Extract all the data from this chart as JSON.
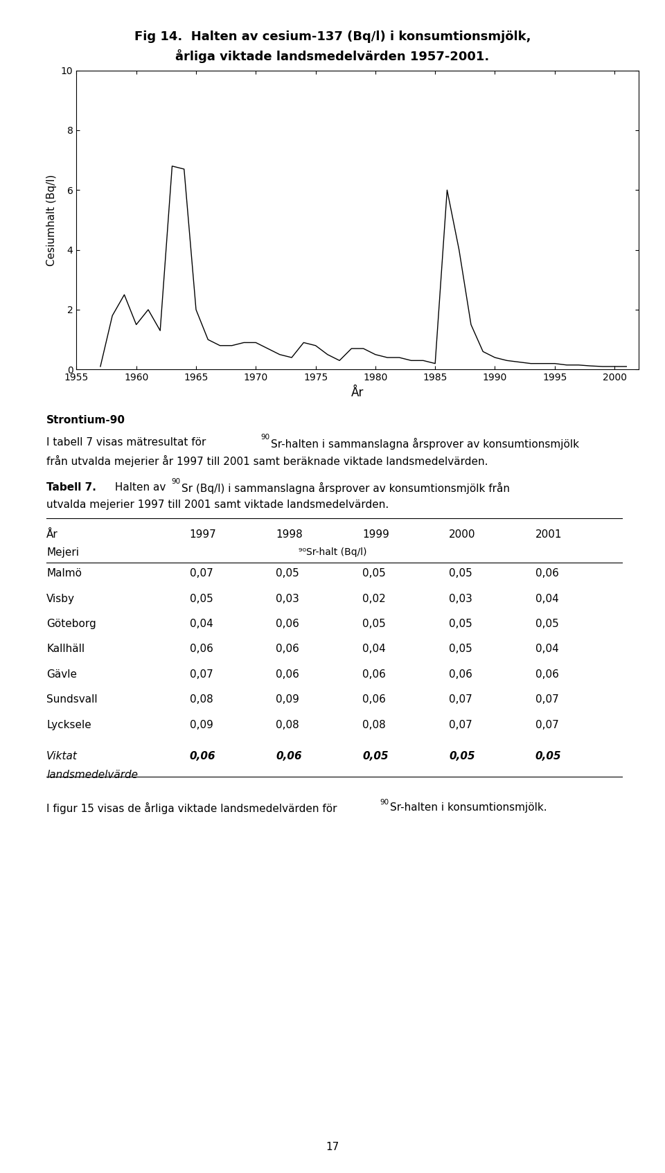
{
  "fig_title_line1": "Fig 14.  Halten av cesium-137 (Bq/l) i konsumtionsmjölk,",
  "fig_title_line2": "årliga viktade landsmedelvärden 1957-2001.",
  "ylabel": "Cesiumhalt (Bq/l)",
  "xlabel": "År",
  "ylim": [
    0,
    10
  ],
  "yticks": [
    0,
    2,
    4,
    6,
    8,
    10
  ],
  "xlim": [
    1955,
    2002
  ],
  "xticks": [
    1955,
    1960,
    1965,
    1970,
    1975,
    1980,
    1985,
    1990,
    1995,
    2000
  ],
  "line_data_x": [
    1957,
    1958,
    1959,
    1960,
    1961,
    1962,
    1963,
    1964,
    1965,
    1966,
    1967,
    1968,
    1969,
    1970,
    1971,
    1972,
    1973,
    1974,
    1975,
    1976,
    1977,
    1978,
    1979,
    1980,
    1981,
    1982,
    1983,
    1984,
    1985,
    1986,
    1987,
    1988,
    1989,
    1990,
    1991,
    1992,
    1993,
    1994,
    1995,
    1996,
    1997,
    1998,
    1999,
    2000,
    2001
  ],
  "line_data_y": [
    0.1,
    1.8,
    2.5,
    1.5,
    2.0,
    1.3,
    6.8,
    6.7,
    2.0,
    1.0,
    0.8,
    0.8,
    0.9,
    0.9,
    0.7,
    0.5,
    0.4,
    0.9,
    0.8,
    0.5,
    0.3,
    0.7,
    0.7,
    0.5,
    0.4,
    0.4,
    0.3,
    0.3,
    0.2,
    6.0,
    4.0,
    1.5,
    0.6,
    0.4,
    0.3,
    0.25,
    0.2,
    0.2,
    0.2,
    0.15,
    0.15,
    0.12,
    0.1,
    0.1,
    0.1
  ],
  "strontium_heading": "Strontium-90",
  "table_header_years": [
    "1997",
    "1998",
    "1999",
    "2000",
    "2001"
  ],
  "table_rows": [
    [
      "Malmö",
      "0,07",
      "0,05",
      "0,05",
      "0,05",
      "0,06"
    ],
    [
      "Visby",
      "0,05",
      "0,03",
      "0,02",
      "0,03",
      "0,04"
    ],
    [
      "Göteborg",
      "0,04",
      "0,06",
      "0,05",
      "0,05",
      "0,05"
    ],
    [
      "Kallhäll",
      "0,06",
      "0,06",
      "0,04",
      "0,05",
      "0,04"
    ],
    [
      "Gävle",
      "0,07",
      "0,06",
      "0,06",
      "0,06",
      "0,06"
    ],
    [
      "Sundsvall",
      "0,08",
      "0,09",
      "0,06",
      "0,07",
      "0,07"
    ],
    [
      "Lycksele",
      "0,09",
      "0,08",
      "0,08",
      "0,07",
      "0,07"
    ]
  ],
  "viktat_vals": [
    "0,06",
    "0,06",
    "0,05",
    "0,05",
    "0,05"
  ],
  "page_number": "17",
  "background_color": "#ffffff",
  "text_color": "#000000",
  "line_color": "#000000"
}
